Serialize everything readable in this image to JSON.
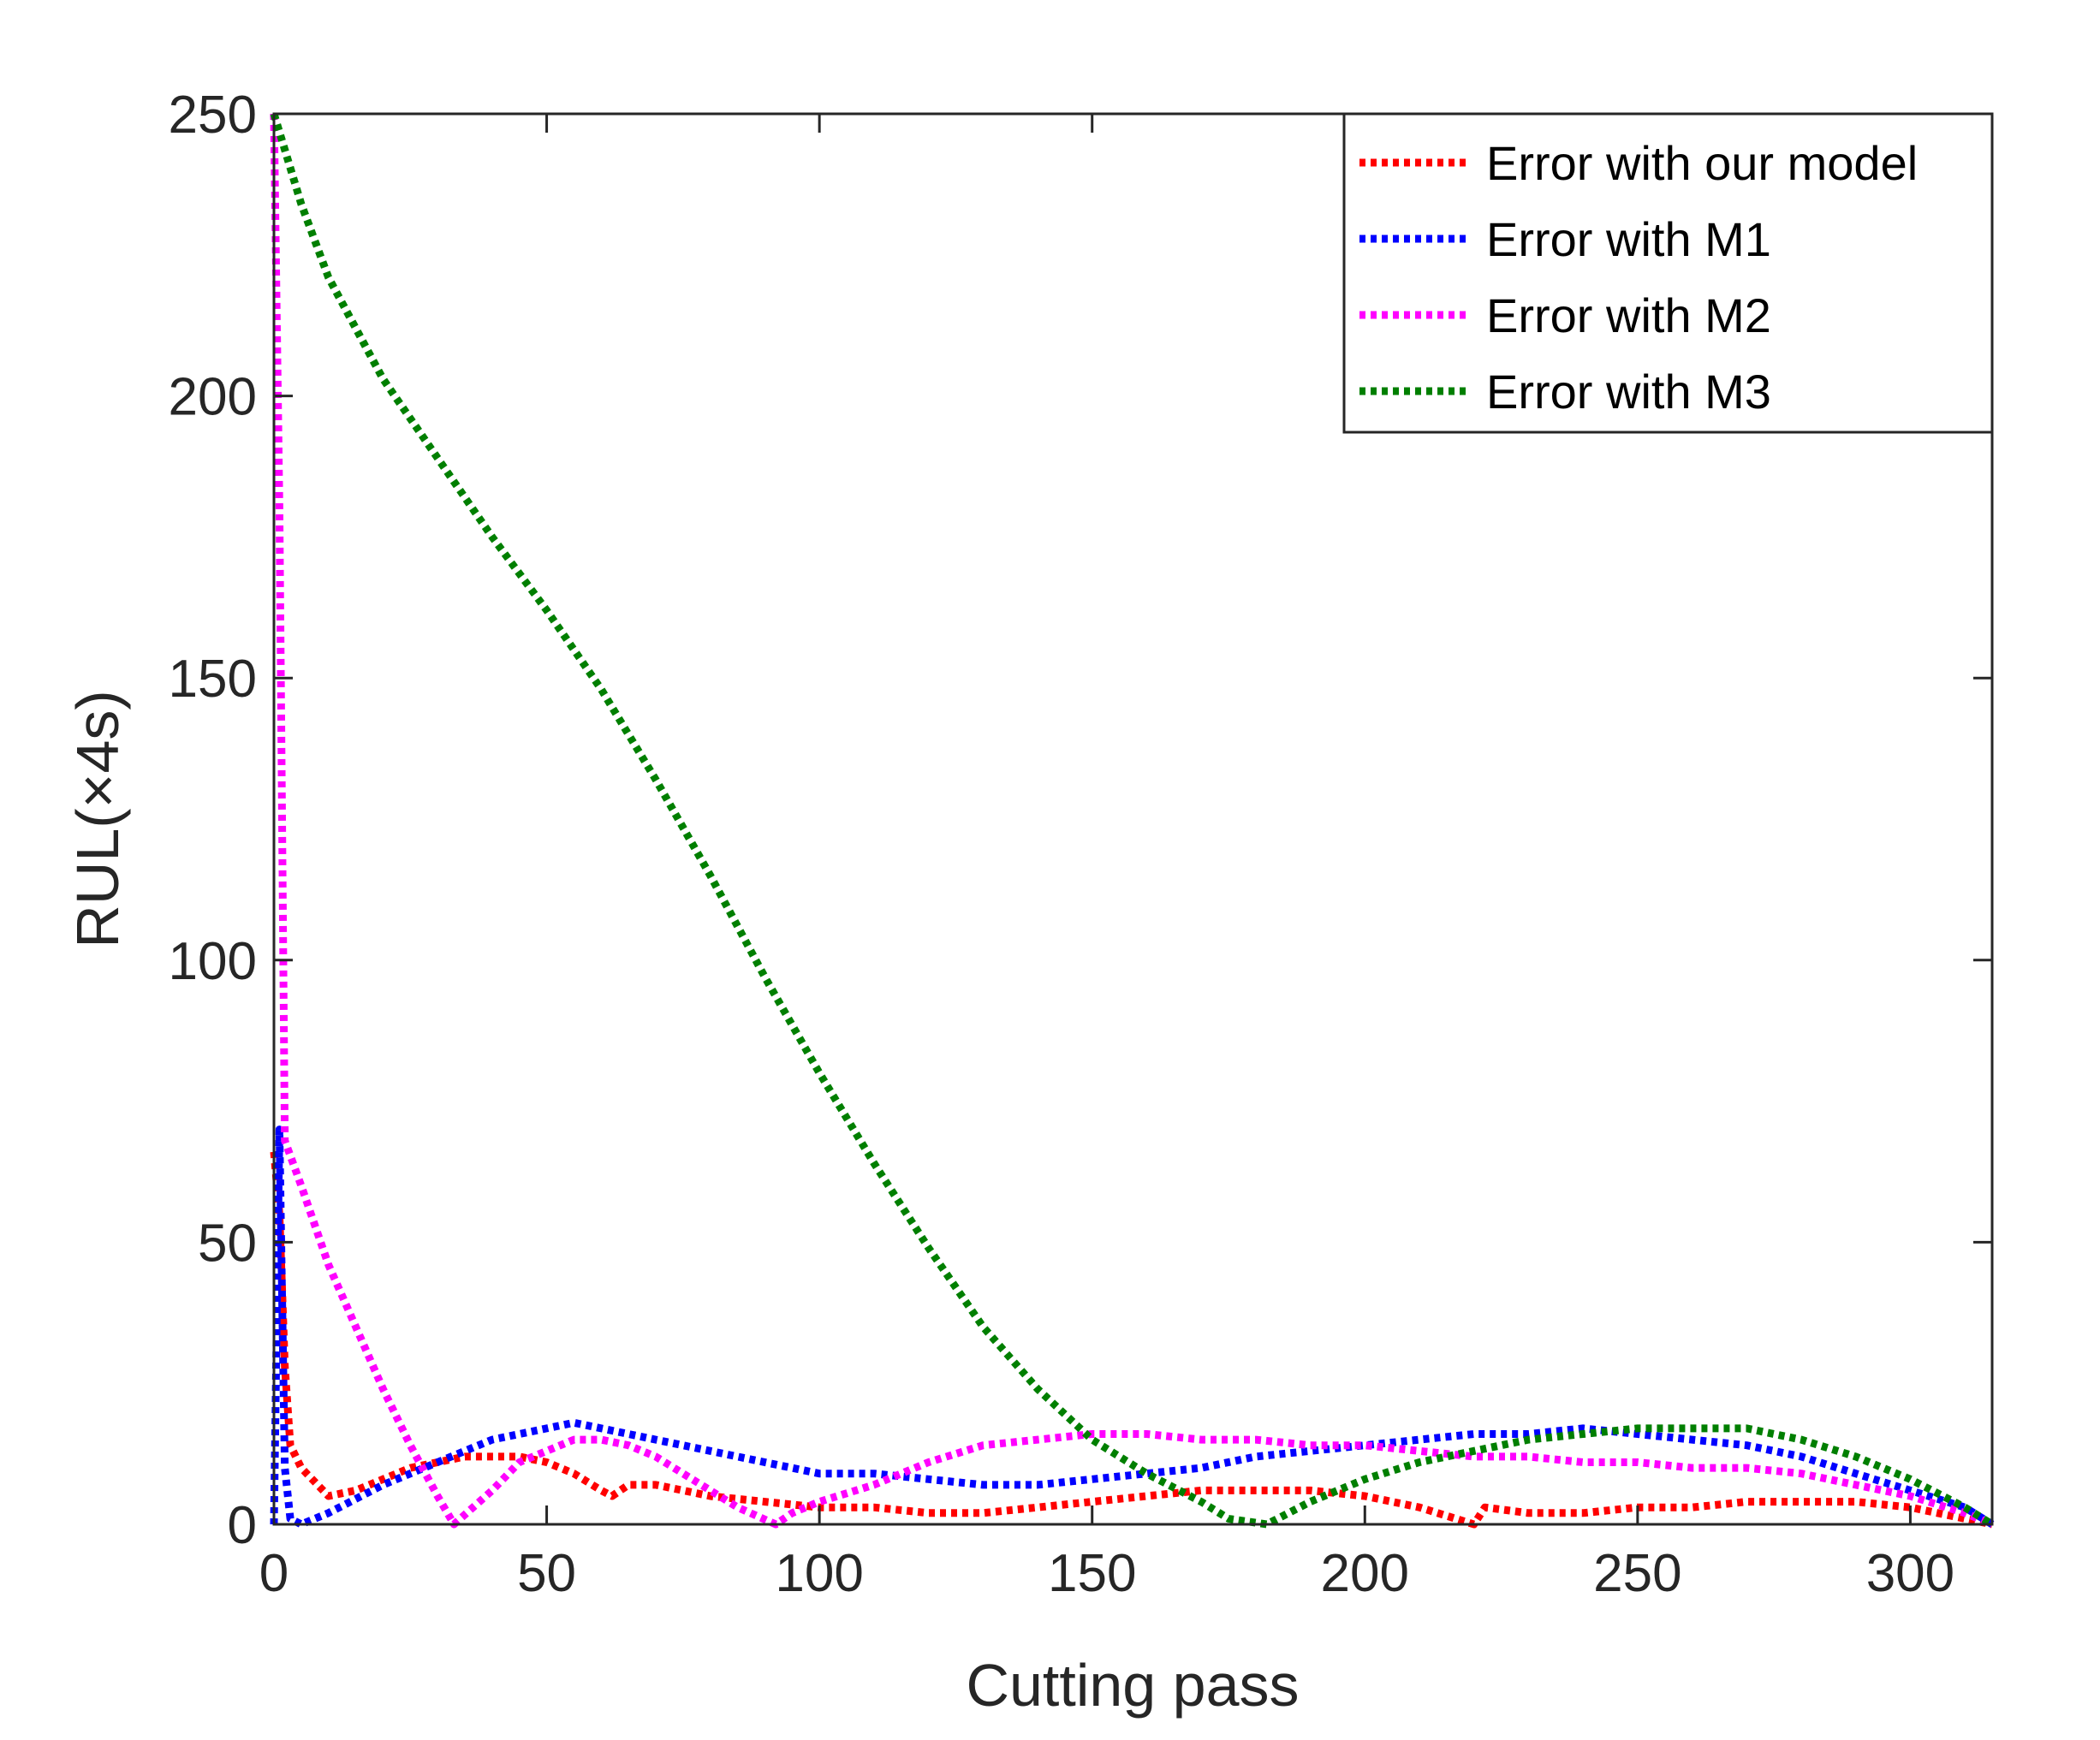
{
  "chart_data": {
    "type": "line",
    "title": "",
    "xlabel": "Cutting pass",
    "ylabel": "RUL(×4s)",
    "xlim": [
      0,
      315
    ],
    "ylim": [
      0,
      250
    ],
    "xticks": [
      0,
      50,
      100,
      150,
      200,
      250,
      300
    ],
    "yticks": [
      0,
      50,
      100,
      150,
      200,
      250
    ],
    "xtick_labels": [
      "0",
      "50",
      "100",
      "150",
      "200",
      "250",
      "300"
    ],
    "ytick_labels": [
      "0",
      "50",
      "100",
      "150",
      "200",
      "250"
    ],
    "grid": false,
    "legend_position": "top-right",
    "line_style": "dotted",
    "series": [
      {
        "name": "Error with our model",
        "color": "#ff0000",
        "points": [
          [
            0,
            66
          ],
          [
            1,
            55
          ],
          [
            2,
            28
          ],
          [
            3,
            14
          ],
          [
            5,
            10
          ],
          [
            8,
            7
          ],
          [
            10,
            5
          ],
          [
            15,
            6
          ],
          [
            20,
            8
          ],
          [
            25,
            10
          ],
          [
            30,
            11
          ],
          [
            35,
            12
          ],
          [
            40,
            12
          ],
          [
            45,
            12
          ],
          [
            50,
            11
          ],
          [
            55,
            9
          ],
          [
            60,
            6
          ],
          [
            62,
            5
          ],
          [
            65,
            7
          ],
          [
            70,
            7
          ],
          [
            75,
            6
          ],
          [
            80,
            5
          ],
          [
            90,
            4
          ],
          [
            100,
            3
          ],
          [
            110,
            3
          ],
          [
            120,
            2
          ],
          [
            130,
            2
          ],
          [
            140,
            3
          ],
          [
            150,
            4
          ],
          [
            160,
            5
          ],
          [
            170,
            6
          ],
          [
            180,
            6
          ],
          [
            190,
            6
          ],
          [
            200,
            5
          ],
          [
            210,
            3
          ],
          [
            220,
            0
          ],
          [
            222,
            3
          ],
          [
            230,
            2
          ],
          [
            240,
            2
          ],
          [
            250,
            3
          ],
          [
            260,
            3
          ],
          [
            270,
            4
          ],
          [
            280,
            4
          ],
          [
            290,
            4
          ],
          [
            300,
            3
          ],
          [
            310,
            1
          ],
          [
            315,
            0
          ]
        ]
      },
      {
        "name": "Error with M1",
        "color": "#0000ff",
        "points": [
          [
            0,
            0
          ],
          [
            1,
            70
          ],
          [
            2,
            10
          ],
          [
            3,
            1
          ],
          [
            5,
            0
          ],
          [
            10,
            2
          ],
          [
            20,
            7
          ],
          [
            30,
            11
          ],
          [
            40,
            15
          ],
          [
            50,
            17
          ],
          [
            55,
            18
          ],
          [
            60,
            17
          ],
          [
            70,
            15
          ],
          [
            80,
            13
          ],
          [
            90,
            11
          ],
          [
            100,
            9
          ],
          [
            110,
            9
          ],
          [
            120,
            8
          ],
          [
            130,
            7
          ],
          [
            140,
            7
          ],
          [
            150,
            8
          ],
          [
            160,
            9
          ],
          [
            170,
            10
          ],
          [
            180,
            12
          ],
          [
            190,
            13
          ],
          [
            200,
            14
          ],
          [
            210,
            15
          ],
          [
            220,
            16
          ],
          [
            230,
            16
          ],
          [
            240,
            17
          ],
          [
            250,
            16
          ],
          [
            260,
            15
          ],
          [
            270,
            14
          ],
          [
            280,
            12
          ],
          [
            290,
            9
          ],
          [
            300,
            6
          ],
          [
            310,
            3
          ],
          [
            315,
            0
          ]
        ]
      },
      {
        "name": "Error with M2",
        "color": "#ff00ff",
        "points": [
          [
            0,
            250
          ],
          [
            1,
            180
          ],
          [
            2,
            68
          ],
          [
            5,
            60
          ],
          [
            10,
            46
          ],
          [
            15,
            35
          ],
          [
            20,
            24
          ],
          [
            25,
            14
          ],
          [
            30,
            5
          ],
          [
            33,
            0
          ],
          [
            40,
            6
          ],
          [
            45,
            11
          ],
          [
            50,
            13
          ],
          [
            55,
            15
          ],
          [
            60,
            15
          ],
          [
            65,
            14
          ],
          [
            70,
            12
          ],
          [
            75,
            9
          ],
          [
            80,
            6
          ],
          [
            85,
            3
          ],
          [
            92,
            0
          ],
          [
            95,
            2
          ],
          [
            100,
            4
          ],
          [
            110,
            7
          ],
          [
            120,
            11
          ],
          [
            130,
            14
          ],
          [
            140,
            15
          ],
          [
            150,
            16
          ],
          [
            160,
            16
          ],
          [
            170,
            15
          ],
          [
            180,
            15
          ],
          [
            190,
            14
          ],
          [
            200,
            14
          ],
          [
            210,
            13
          ],
          [
            220,
            12
          ],
          [
            230,
            12
          ],
          [
            240,
            11
          ],
          [
            250,
            11
          ],
          [
            260,
            10
          ],
          [
            270,
            10
          ],
          [
            280,
            9
          ],
          [
            290,
            7
          ],
          [
            300,
            5
          ],
          [
            310,
            2
          ],
          [
            315,
            0
          ]
        ]
      },
      {
        "name": "Error with M3",
        "color": "#007f00",
        "points": [
          [
            0,
            250
          ],
          [
            5,
            234
          ],
          [
            10,
            221
          ],
          [
            20,
            203
          ],
          [
            30,
            189
          ],
          [
            40,
            175
          ],
          [
            50,
            162
          ],
          [
            60,
            148
          ],
          [
            70,
            132
          ],
          [
            80,
            115
          ],
          [
            90,
            97
          ],
          [
            100,
            80
          ],
          [
            110,
            64
          ],
          [
            120,
            49
          ],
          [
            130,
            35
          ],
          [
            140,
            24
          ],
          [
            150,
            15
          ],
          [
            160,
            9
          ],
          [
            170,
            4
          ],
          [
            175,
            1
          ],
          [
            182,
            0
          ],
          [
            190,
            4
          ],
          [
            200,
            8
          ],
          [
            210,
            11
          ],
          [
            220,
            13
          ],
          [
            230,
            15
          ],
          [
            240,
            16
          ],
          [
            250,
            17
          ],
          [
            260,
            17
          ],
          [
            270,
            17
          ],
          [
            280,
            15
          ],
          [
            290,
            12
          ],
          [
            300,
            8
          ],
          [
            310,
            3
          ],
          [
            315,
            0
          ]
        ]
      }
    ]
  }
}
